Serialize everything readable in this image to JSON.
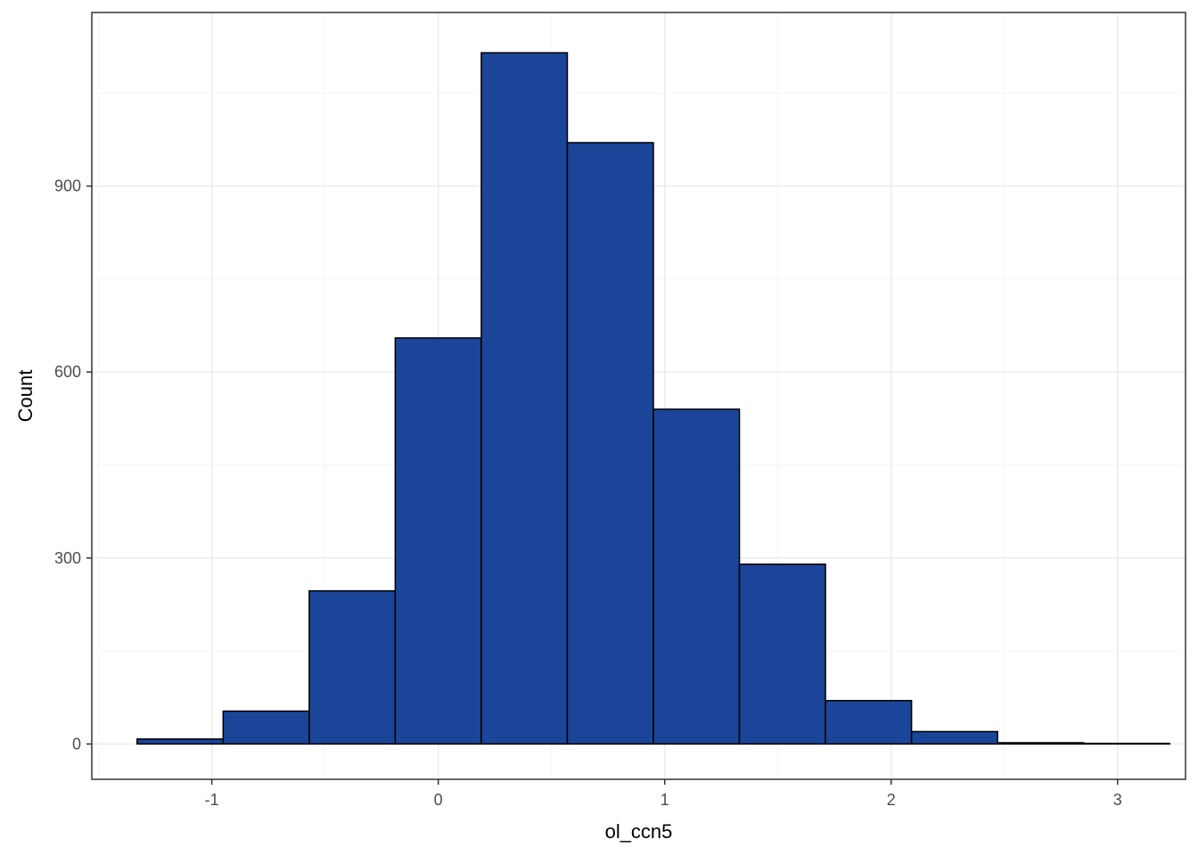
{
  "chart_data": {
    "type": "bar",
    "subtype": "histogram",
    "title": "",
    "xlabel": "ol_ccn5",
    "ylabel": "Count",
    "xlim": [
      -1.53,
      3.3
    ],
    "ylim": [
      -57,
      1180
    ],
    "x_ticks": [
      -1,
      0,
      1,
      2,
      3
    ],
    "x_tick_labels": [
      "-1",
      "0",
      "1",
      "2",
      "3"
    ],
    "y_ticks": [
      0,
      300,
      600,
      900
    ],
    "y_tick_labels": [
      "0",
      "300",
      "600",
      "900"
    ],
    "grid": true,
    "legend": "none",
    "bins": [
      {
        "x0": -1.33,
        "x1": -0.95,
        "count": 8
      },
      {
        "x0": -0.95,
        "x1": -0.57,
        "count": 53
      },
      {
        "x0": -0.57,
        "x1": -0.19,
        "count": 247
      },
      {
        "x0": -0.19,
        "x1": 0.19,
        "count": 655
      },
      {
        "x0": 0.19,
        "x1": 0.57,
        "count": 1115
      },
      {
        "x0": 0.57,
        "x1": 0.95,
        "count": 970
      },
      {
        "x0": 0.95,
        "x1": 1.33,
        "count": 540
      },
      {
        "x0": 1.33,
        "x1": 1.71,
        "count": 290
      },
      {
        "x0": 1.71,
        "x1": 2.09,
        "count": 70
      },
      {
        "x0": 2.09,
        "x1": 2.47,
        "count": 20
      },
      {
        "x0": 2.47,
        "x1": 2.85,
        "count": 2
      },
      {
        "x0": 2.85,
        "x1": 3.23,
        "count": 1
      }
    ],
    "colors": {
      "bar_fill": "#1A4599",
      "bar_stroke": "#000000",
      "panel_border": "#333333",
      "grid_major": "#EBEBEB",
      "grid_minor": "#F5F5F5",
      "tick_text": "#4D4D4D",
      "axis_title": "#000000"
    }
  }
}
